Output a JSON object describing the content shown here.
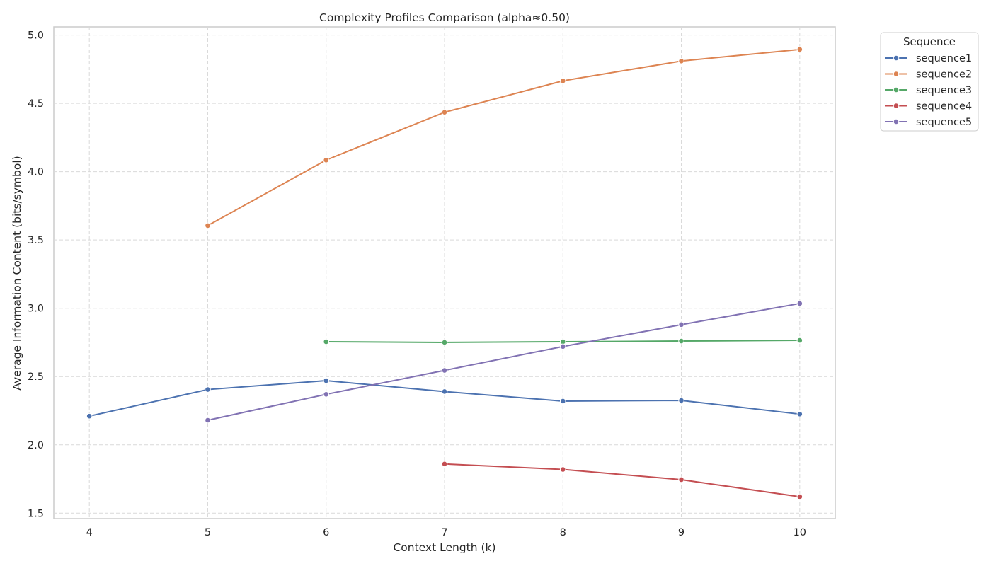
{
  "chart_data": {
    "type": "line",
    "title": "Complexity Profiles Comparison (alpha≈0.50)",
    "xlabel": "Context Length (k)",
    "ylabel": "Average Information Content (bits/symbol)",
    "xlim": [
      3.7,
      10.3
    ],
    "ylim": [
      1.46,
      5.06
    ],
    "xticks": [
      4,
      5,
      6,
      7,
      8,
      9,
      10
    ],
    "yticks": [
      1.5,
      2.0,
      2.5,
      3.0,
      3.5,
      4.0,
      4.5,
      5.0
    ],
    "xtick_labels": [
      "4",
      "5",
      "6",
      "7",
      "8",
      "9",
      "10"
    ],
    "ytick_labels": [
      "1.5",
      "2.0",
      "2.5",
      "3.0",
      "3.5",
      "4.0",
      "4.5",
      "5.0"
    ],
    "grid": true,
    "legend": {
      "title": "Sequence",
      "placement": "outside-top-right"
    },
    "series": [
      {
        "name": "sequence1",
        "color": "#4c72b0",
        "x": [
          4,
          5,
          6,
          7,
          8,
          9,
          10
        ],
        "y": [
          2.21,
          2.405,
          2.47,
          2.39,
          2.32,
          2.325,
          2.225
        ]
      },
      {
        "name": "sequence2",
        "color": "#dd8452",
        "x": [
          5,
          6,
          7,
          8,
          9,
          10
        ],
        "y": [
          3.605,
          4.085,
          4.435,
          4.665,
          4.81,
          4.895
        ]
      },
      {
        "name": "sequence3",
        "color": "#55a868",
        "x": [
          6,
          7,
          8,
          9,
          10
        ],
        "y": [
          2.755,
          2.75,
          2.755,
          2.76,
          2.765
        ]
      },
      {
        "name": "sequence4",
        "color": "#c44e52",
        "x": [
          7,
          8,
          9,
          10
        ],
        "y": [
          1.86,
          1.82,
          1.745,
          1.62
        ]
      },
      {
        "name": "sequence5",
        "color": "#8172b3",
        "x": [
          5,
          6,
          7,
          8,
          9,
          10
        ],
        "y": [
          2.18,
          2.37,
          2.545,
          2.72,
          2.88,
          3.035
        ]
      }
    ]
  }
}
